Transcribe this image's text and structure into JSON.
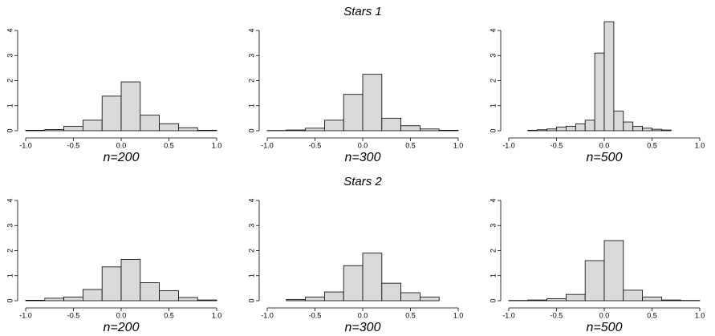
{
  "chart_data": [
    {
      "type": "histogram",
      "xlabel": "n=200",
      "color": "#d9d9d9",
      "bins": [
        -1.0,
        -0.8,
        -0.6,
        -0.4,
        -0.2,
        0.0,
        0.2,
        0.4,
        0.6,
        0.8,
        1.0
      ],
      "counts": [
        0.02,
        0.05,
        0.18,
        0.42,
        1.38,
        1.95,
        0.62,
        0.28,
        0.12,
        0.02
      ],
      "xlim": [
        -1,
        1
      ],
      "ylim": [
        0,
        4
      ],
      "xticks": [
        {
          "value": -1,
          "label": "-1.0"
        },
        -0.5,
        {
          "value": 0,
          "label": "0.0"
        },
        0.5,
        {
          "value": 1,
          "label": "1.0"
        }
      ],
      "yticks": [
        0,
        1,
        2,
        3,
        4
      ]
    },
    {
      "type": "histogram",
      "title": "Stars 1",
      "xlabel": "n=300",
      "color": "#d9d9d9",
      "bins": [
        -1.0,
        -0.8,
        -0.6,
        -0.4,
        -0.2,
        0.0,
        0.2,
        0.4,
        0.6,
        0.8,
        1.0
      ],
      "counts": [
        0.01,
        0.03,
        0.1,
        0.42,
        1.45,
        2.25,
        0.5,
        0.2,
        0.07,
        0.02
      ],
      "xlim": [
        -1,
        1
      ],
      "ylim": [
        0,
        4
      ],
      "xticks": [
        {
          "value": -1,
          "label": "-1.0"
        },
        -0.5,
        {
          "value": 0,
          "label": "0.0"
        },
        0.5,
        {
          "value": 1,
          "label": "1.0"
        }
      ],
      "yticks": [
        0,
        1,
        2,
        3,
        4
      ]
    },
    {
      "type": "histogram",
      "xlabel": "n=500",
      "color": "#d9d9d9",
      "bins": [
        -0.8,
        -0.7,
        -0.6,
        -0.5,
        -0.4,
        -0.3,
        -0.2,
        -0.1,
        0.0,
        0.1,
        0.2,
        0.3,
        0.4,
        0.5,
        0.6,
        0.7
      ],
      "counts": [
        0.02,
        0.04,
        0.07,
        0.15,
        0.18,
        0.27,
        0.42,
        3.1,
        4.35,
        0.78,
        0.35,
        0.18,
        0.1,
        0.06,
        0.03
      ],
      "xlim": [
        -1,
        1
      ],
      "ylim": [
        0,
        4
      ],
      "xticks": [
        {
          "value": -1,
          "label": "-1.0"
        },
        -0.5,
        {
          "value": 0,
          "label": "0.0"
        },
        0.5,
        {
          "value": 1,
          "label": "1.0"
        }
      ],
      "yticks": [
        0,
        1,
        2,
        3,
        4
      ]
    },
    {
      "type": "histogram",
      "xlabel": "n=200",
      "color": "#d9d9d9",
      "bins": [
        -1.0,
        -0.8,
        -0.6,
        -0.4,
        -0.2,
        0.0,
        0.2,
        0.4,
        0.6,
        0.8,
        1.0
      ],
      "counts": [
        0.02,
        0.1,
        0.15,
        0.45,
        1.35,
        1.65,
        0.72,
        0.4,
        0.13,
        0.03
      ],
      "xlim": [
        -1,
        1
      ],
      "ylim": [
        0,
        4
      ],
      "xticks": [
        {
          "value": -1,
          "label": "-1.0"
        },
        -0.5,
        {
          "value": 0,
          "label": "0.0"
        },
        0.5,
        {
          "value": 1,
          "label": "1.0"
        }
      ],
      "yticks": [
        0,
        1,
        2,
        3,
        4
      ]
    },
    {
      "type": "histogram",
      "title": "Stars 2",
      "xlabel": "n=300",
      "color": "#d9d9d9",
      "bins": [
        -0.8,
        -0.6,
        -0.4,
        -0.2,
        0.0,
        0.2,
        0.4,
        0.6,
        0.8
      ],
      "counts": [
        0.05,
        0.15,
        0.35,
        1.4,
        1.9,
        0.7,
        0.32,
        0.15
      ],
      "xlim": [
        -1,
        1
      ],
      "ylim": [
        0,
        4
      ],
      "xticks": [
        {
          "value": -1,
          "label": "-1.0"
        },
        -0.5,
        {
          "value": 0,
          "label": "0.0"
        },
        0.5,
        {
          "value": 1,
          "label": "1.0"
        }
      ],
      "yticks": [
        0,
        1,
        2,
        3,
        4
      ]
    },
    {
      "type": "histogram",
      "xlabel": "n=500",
      "color": "#d9d9d9",
      "bins": [
        -1.0,
        -0.8,
        -0.6,
        -0.4,
        -0.2,
        0.0,
        0.2,
        0.4,
        0.6,
        0.8,
        1.0
      ],
      "counts": [
        0.01,
        0.03,
        0.08,
        0.25,
        1.6,
        2.4,
        0.42,
        0.15,
        0.03,
        0.01
      ],
      "xlim": [
        -1,
        1
      ],
      "ylim": [
        0,
        4
      ],
      "xticks": [
        {
          "value": -1,
          "label": "-1.0"
        },
        -0.5,
        {
          "value": 0,
          "label": "0.0"
        },
        0.5,
        {
          "value": 1,
          "label": "1.0"
        }
      ],
      "yticks": [
        0,
        1,
        2,
        3,
        4
      ]
    }
  ]
}
